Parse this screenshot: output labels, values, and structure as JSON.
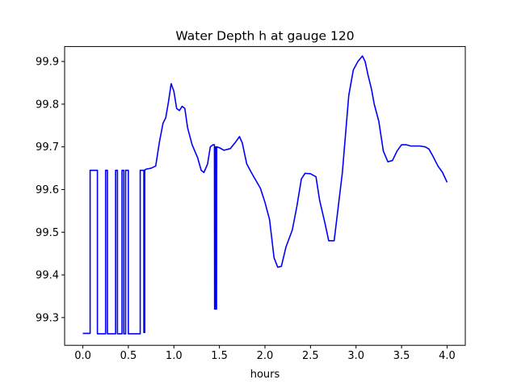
{
  "chart_data": {
    "type": "line",
    "title": "Water Depth h at gauge 120",
    "xlabel": "hours",
    "ylabel": "",
    "xlim": [
      -0.2,
      4.2
    ],
    "ylim": [
      99.235,
      99.935
    ],
    "xticks": [
      0.0,
      0.5,
      1.0,
      1.5,
      2.0,
      2.5,
      3.0,
      3.5,
      4.0
    ],
    "xtick_labels": [
      "0.0",
      "0.5",
      "1.0",
      "1.5",
      "2.0",
      "2.5",
      "3.0",
      "3.5",
      "4.0"
    ],
    "yticks": [
      99.3,
      99.4,
      99.5,
      99.6,
      99.7,
      99.8,
      99.9
    ],
    "ytick_labels": [
      "99.3",
      "99.4",
      "99.5",
      "99.6",
      "99.7",
      "99.8",
      "99.9"
    ],
    "grid": false,
    "legend": "none",
    "series": [
      {
        "color": "#0000ff",
        "x": [
          0.0,
          0.08,
          0.08,
          0.16,
          0.16,
          0.25,
          0.25,
          0.27,
          0.27,
          0.36,
          0.36,
          0.38,
          0.38,
          0.43,
          0.43,
          0.45,
          0.45,
          0.47,
          0.47,
          0.5,
          0.5,
          0.63,
          0.63,
          0.67,
          0.67,
          0.68,
          0.68,
          0.7,
          0.75,
          0.8,
          0.84,
          0.88,
          0.91,
          0.94,
          0.97,
          1.0,
          1.03,
          1.06,
          1.09,
          1.12,
          1.15,
          1.2,
          1.26,
          1.3,
          1.33,
          1.37,
          1.4,
          1.43,
          1.445,
          1.447,
          1.45,
          1.452,
          1.455,
          1.457,
          1.46,
          1.462,
          1.465,
          1.468,
          1.47,
          1.5,
          1.55,
          1.62,
          1.68,
          1.72,
          1.75,
          1.8,
          1.85,
          1.95,
          2.0,
          2.05,
          2.1,
          2.14,
          2.18,
          2.23,
          2.3,
          2.35,
          2.4,
          2.44,
          2.5,
          2.56,
          2.6,
          2.66,
          2.7,
          2.76,
          2.85,
          2.92,
          2.97,
          3.02,
          3.07,
          3.1,
          3.13,
          3.17,
          3.2,
          3.25,
          3.3,
          3.35,
          3.4,
          3.45,
          3.5,
          3.55,
          3.6,
          3.65,
          3.7,
          3.76,
          3.8,
          3.84,
          3.9,
          3.95,
          4.0
        ],
        "y": [
          99.263,
          99.263,
          99.645,
          99.645,
          99.262,
          99.262,
          99.645,
          99.645,
          99.262,
          99.262,
          99.645,
          99.645,
          99.262,
          99.262,
          99.645,
          99.645,
          99.262,
          99.262,
          99.645,
          99.645,
          99.262,
          99.262,
          99.645,
          99.645,
          99.265,
          99.265,
          99.646,
          99.648,
          99.65,
          99.655,
          99.71,
          99.755,
          99.768,
          99.805,
          99.848,
          99.83,
          99.79,
          99.785,
          99.795,
          99.79,
          99.745,
          99.705,
          99.675,
          99.645,
          99.64,
          99.66,
          99.7,
          99.705,
          99.705,
          99.32,
          99.7,
          99.32,
          99.7,
          99.32,
          99.7,
          99.32,
          99.7,
          99.32,
          99.7,
          99.698,
          99.692,
          99.696,
          99.712,
          99.724,
          99.71,
          99.66,
          99.64,
          99.603,
          99.57,
          99.53,
          99.44,
          99.418,
          99.42,
          99.465,
          99.505,
          99.56,
          99.625,
          99.638,
          99.637,
          99.63,
          99.575,
          99.52,
          99.48,
          99.48,
          99.64,
          99.82,
          99.88,
          99.9,
          99.913,
          99.9,
          99.87,
          99.835,
          99.8,
          99.76,
          99.69,
          99.665,
          99.668,
          99.69,
          99.705,
          99.705,
          99.702,
          99.702,
          99.702,
          99.7,
          99.695,
          99.68,
          99.655,
          99.64,
          99.617
        ]
      }
    ]
  }
}
